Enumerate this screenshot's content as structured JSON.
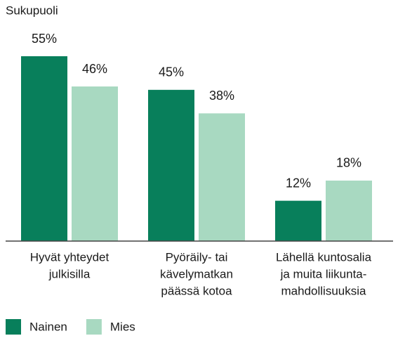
{
  "chart_data": {
    "type": "bar",
    "title": "Sukupuoli",
    "categories": [
      [
        "Hyvät yhteydet",
        "julkisilla"
      ],
      [
        "Pyöräily- tai",
        "kävelymatkan",
        "päässä kotoa"
      ],
      [
        "Lähellä kuntosalia",
        "ja muita liikunta-",
        "mahdollisuuksia"
      ]
    ],
    "series": [
      {
        "name": "Nainen",
        "color": "#087f5b",
        "values": [
          55,
          45,
          12
        ],
        "value_labels": [
          "55%",
          "45%",
          "12%"
        ]
      },
      {
        "name": "Mies",
        "color": "#a8d9c1",
        "values": [
          46,
          38,
          18
        ],
        "value_labels": [
          "46%",
          "38%",
          "18%"
        ]
      }
    ]
  }
}
